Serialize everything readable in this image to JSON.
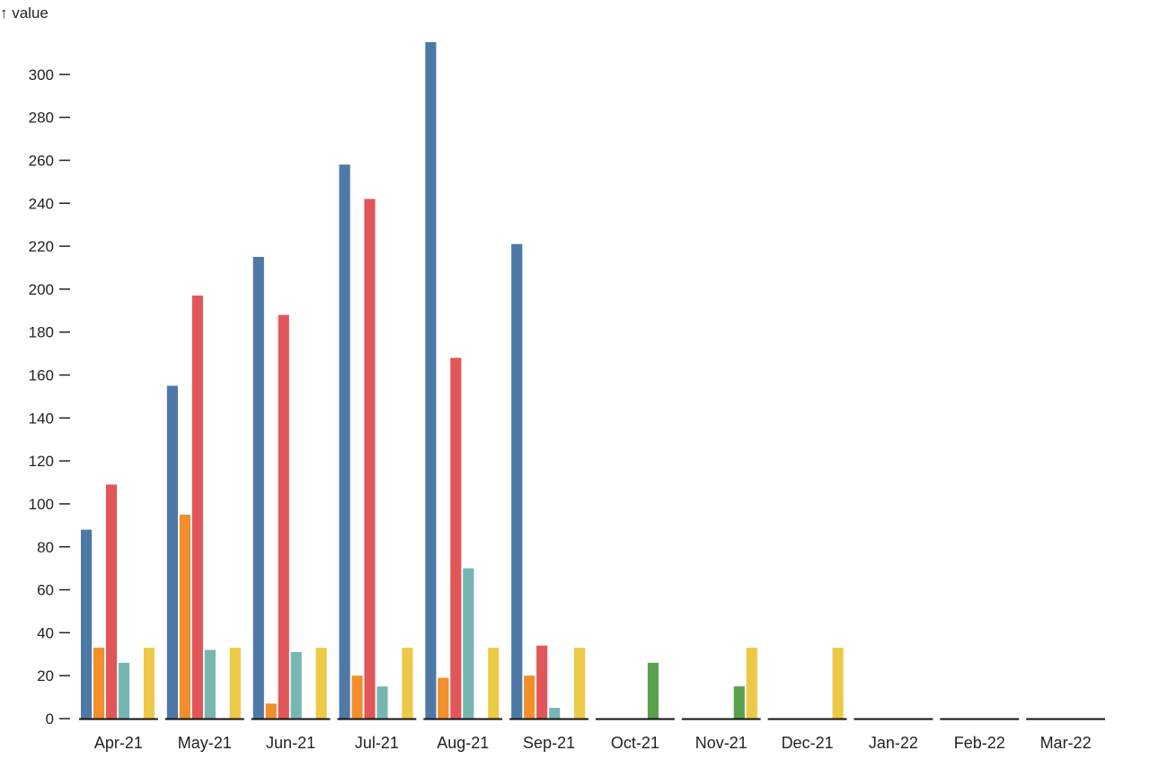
{
  "chart_data": {
    "type": "bar",
    "ylabel": "↑ value",
    "ylim": [
      0,
      320
    ],
    "yticks": [
      0,
      20,
      40,
      60,
      80,
      100,
      120,
      140,
      160,
      180,
      200,
      220,
      240,
      260,
      280,
      300
    ],
    "categories": [
      "Apr-21",
      "May-21",
      "Jun-21",
      "Jul-21",
      "Aug-21",
      "Sep-21",
      "Oct-21",
      "Nov-21",
      "Dec-21",
      "Jan-22",
      "Feb-22",
      "Mar-22"
    ],
    "grid": false,
    "legend": "none",
    "series": [
      {
        "color": "#4e79a7",
        "values": [
          88,
          155,
          215,
          258,
          315,
          221,
          0,
          0,
          0,
          0,
          0,
          0
        ]
      },
      {
        "color": "#f28e2b",
        "values": [
          33,
          95,
          7,
          20,
          19,
          20,
          0,
          0,
          0,
          0,
          0,
          0
        ]
      },
      {
        "color": "#e15759",
        "values": [
          109,
          197,
          188,
          242,
          168,
          34,
          0,
          0,
          0,
          0,
          0,
          0
        ]
      },
      {
        "color": "#76b7b2",
        "values": [
          26,
          32,
          31,
          15,
          70,
          5,
          0,
          0,
          0,
          0,
          0,
          0
        ]
      },
      {
        "color": "#59a14f",
        "values": [
          0,
          0,
          0,
          0,
          0,
          0,
          26,
          15,
          0,
          0,
          0,
          0
        ]
      },
      {
        "color": "#edc948",
        "values": [
          33,
          33,
          33,
          33,
          33,
          33,
          0,
          33,
          33,
          0,
          0,
          0
        ]
      }
    ]
  }
}
